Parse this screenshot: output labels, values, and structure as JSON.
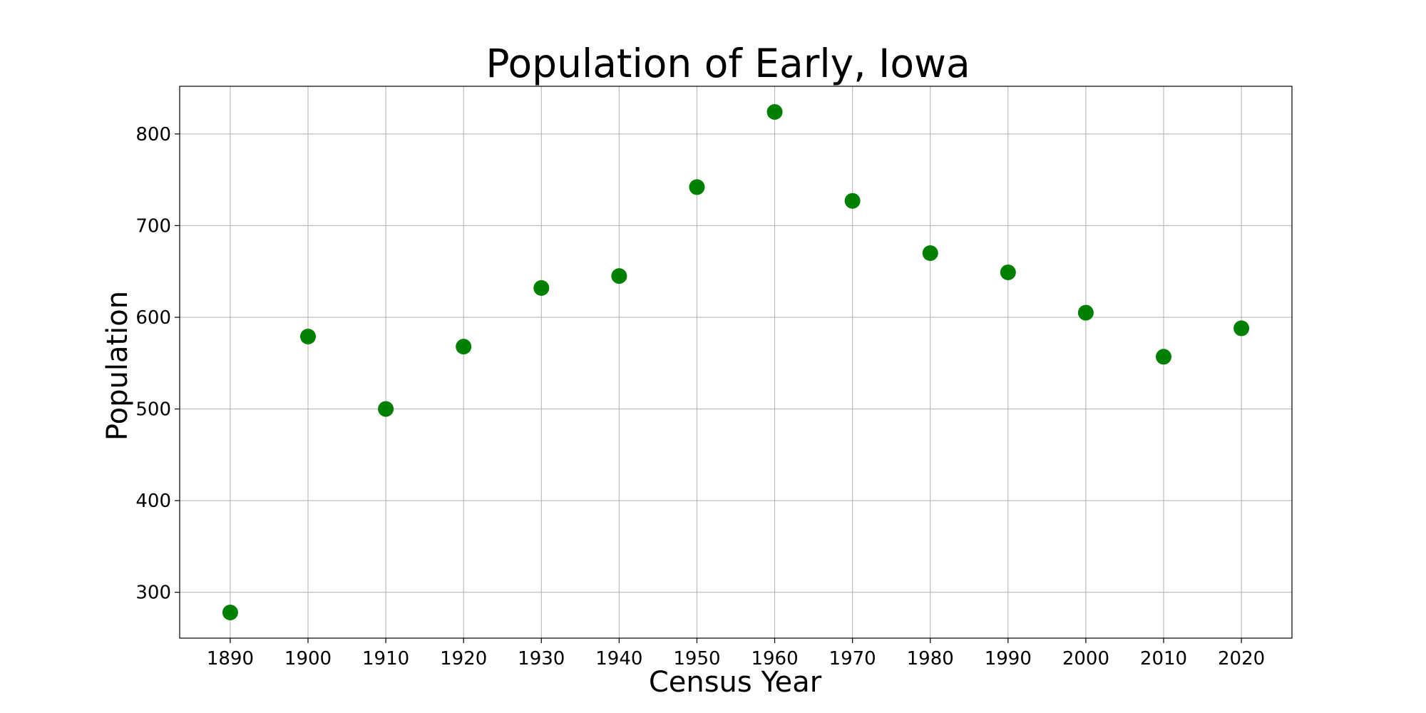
{
  "chart_data": {
    "type": "scatter",
    "title": "Population of Early, Iowa",
    "xlabel": "Census Year",
    "ylabel": "Population",
    "xlim": [
      1883.5,
      2026.5
    ],
    "ylim": [
      250,
      852
    ],
    "xticks": [
      1890,
      1900,
      1910,
      1920,
      1930,
      1940,
      1950,
      1960,
      1970,
      1980,
      1990,
      2000,
      2010,
      2020
    ],
    "yticks": [
      300,
      400,
      500,
      600,
      700,
      800
    ],
    "grid": true,
    "marker_color": "#008000",
    "series": [
      {
        "x": [
          1890,
          1900,
          1910,
          1920,
          1930,
          1940,
          1950,
          1960,
          1970,
          1980,
          1990,
          2000,
          2010,
          2020
        ],
        "y": [
          278,
          579,
          500,
          568,
          632,
          645,
          742,
          824,
          727,
          670,
          649,
          605,
          557,
          588
        ]
      }
    ]
  }
}
